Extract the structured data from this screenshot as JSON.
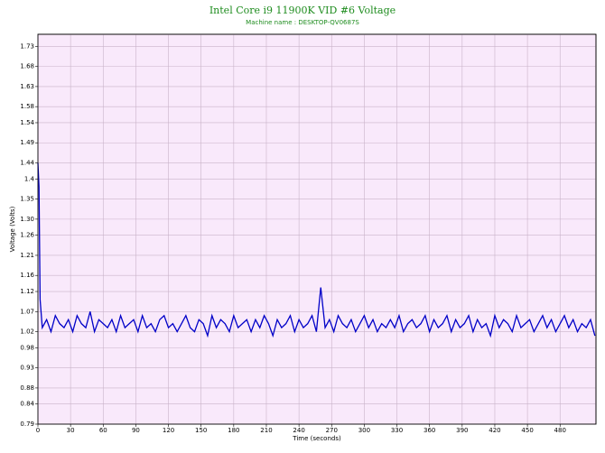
{
  "chart_data": {
    "type": "line",
    "title": "Intel Core i9 11900K VID #6 Voltage",
    "subtitle": "Machine name : DESKTOP-QV0687S",
    "x_label": "Time (seconds)",
    "y_label": "Voltage (Volts)",
    "xlim": [
      0,
      513
    ],
    "ylim": [
      0.79,
      1.76
    ],
    "xticks": [
      0,
      30,
      60,
      90,
      120,
      150,
      180,
      210,
      240,
      270,
      300,
      330,
      360,
      390,
      420,
      450,
      480
    ],
    "yticks": [
      0.79,
      0.84,
      0.88,
      0.93,
      0.98,
      1.02,
      1.07,
      1.12,
      1.16,
      1.21,
      1.26,
      {
        "value": 1.3,
        "label": "1.30"
      },
      1.35,
      1.4,
      1.44,
      1.49,
      1.54,
      1.58,
      1.63,
      1.68,
      1.73
    ],
    "grid": true,
    "x": [
      0,
      1,
      2,
      4,
      8,
      12,
      16,
      20,
      24,
      28,
      32,
      36,
      40,
      44,
      48,
      52,
      56,
      60,
      64,
      68,
      72,
      76,
      80,
      84,
      88,
      92,
      96,
      100,
      104,
      108,
      112,
      116,
      120,
      124,
      128,
      132,
      136,
      140,
      144,
      148,
      152,
      156,
      160,
      164,
      168,
      172,
      176,
      180,
      184,
      188,
      192,
      196,
      200,
      204,
      208,
      212,
      216,
      220,
      224,
      228,
      232,
      236,
      240,
      244,
      248,
      252,
      256,
      260,
      264,
      268,
      272,
      276,
      280,
      284,
      288,
      292,
      296,
      300,
      304,
      308,
      312,
      316,
      320,
      324,
      328,
      332,
      336,
      340,
      344,
      348,
      352,
      356,
      360,
      364,
      368,
      372,
      376,
      380,
      384,
      388,
      392,
      396,
      400,
      404,
      408,
      412,
      416,
      420,
      424,
      428,
      432,
      436,
      440,
      444,
      448,
      452,
      456,
      460,
      464,
      468,
      472,
      476,
      480,
      484,
      488,
      492,
      496,
      500,
      504,
      508,
      512
    ],
    "series": [
      {
        "name": "VID #6",
        "color": "#0000c8",
        "values": [
          1.44,
          1.38,
          1.1,
          1.03,
          1.05,
          1.02,
          1.06,
          1.04,
          1.03,
          1.05,
          1.02,
          1.06,
          1.04,
          1.03,
          1.07,
          1.02,
          1.05,
          1.04,
          1.03,
          1.05,
          1.02,
          1.06,
          1.03,
          1.04,
          1.05,
          1.02,
          1.06,
          1.03,
          1.04,
          1.02,
          1.05,
          1.06,
          1.03,
          1.04,
          1.02,
          1.04,
          1.06,
          1.03,
          1.02,
          1.05,
          1.04,
          1.01,
          1.06,
          1.03,
          1.05,
          1.04,
          1.02,
          1.06,
          1.03,
          1.04,
          1.05,
          1.02,
          1.05,
          1.03,
          1.06,
          1.04,
          1.01,
          1.05,
          1.03,
          1.04,
          1.06,
          1.02,
          1.05,
          1.03,
          1.04,
          1.06,
          1.02,
          1.13,
          1.03,
          1.05,
          1.02,
          1.06,
          1.04,
          1.03,
          1.05,
          1.02,
          1.04,
          1.06,
          1.03,
          1.05,
          1.02,
          1.04,
          1.03,
          1.05,
          1.03,
          1.06,
          1.02,
          1.04,
          1.05,
          1.03,
          1.04,
          1.06,
          1.02,
          1.05,
          1.03,
          1.04,
          1.06,
          1.02,
          1.05,
          1.03,
          1.04,
          1.06,
          1.02,
          1.05,
          1.03,
          1.04,
          1.01,
          1.06,
          1.03,
          1.05,
          1.04,
          1.02,
          1.06,
          1.03,
          1.04,
          1.05,
          1.02,
          1.04,
          1.06,
          1.03,
          1.05,
          1.02,
          1.04,
          1.06,
          1.03,
          1.05,
          1.02,
          1.04,
          1.03,
          1.05,
          1.01
        ]
      }
    ]
  }
}
